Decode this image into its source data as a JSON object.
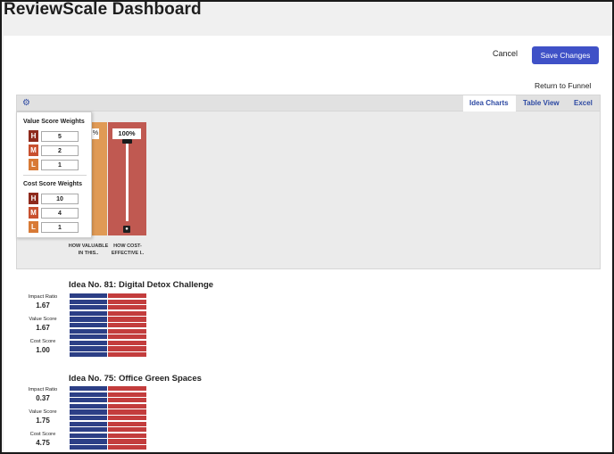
{
  "app": {
    "title": "ReviewScale Dashboard"
  },
  "actions": {
    "cancel_label": "Cancel",
    "save_label": "Save Changes",
    "return_label": "Return to Funnel"
  },
  "tabs": [
    {
      "label": "Idea Charts",
      "active": true
    },
    {
      "label": "Table View",
      "active": false
    },
    {
      "label": "Excel",
      "active": false
    }
  ],
  "sliders": {
    "value_pct": "%",
    "cost_pct": "100%",
    "value_label_1": "HOW VALUABLE",
    "value_label_2": "IN THIS..",
    "cost_label_1": "HOW COST-",
    "cost_label_2": "EFFECTIVE I.."
  },
  "weights": {
    "value_heading": "Value Score Weights",
    "value": [
      {
        "level": "H",
        "amount": "5"
      },
      {
        "level": "M",
        "amount": "2"
      },
      {
        "level": "L",
        "amount": "1"
      }
    ],
    "cost_heading": "Cost Score Weights",
    "cost": [
      {
        "level": "H",
        "amount": "10"
      },
      {
        "level": "M",
        "amount": "4"
      },
      {
        "level": "L",
        "amount": "1"
      }
    ]
  },
  "ideas": [
    {
      "title": "Idea No. 81: Digital Detox Challenge",
      "impact_label": "Impact Ratio",
      "impact": "1.67",
      "value_label": "Value Score",
      "value": "1.67",
      "cost_label": "Cost Score",
      "cost": "1.00"
    },
    {
      "title": "Idea No. 75: Office Green Spaces",
      "impact_label": "Impact Ratio",
      "impact": "0.37",
      "value_label": "Value Score",
      "value": "1.75",
      "cost_label": "Cost Score",
      "cost": "4.75"
    }
  ],
  "colors": {
    "accent": "#3f51c7",
    "tab_text": "#2e4aa3",
    "bar_blue": "#2c3f86",
    "bar_red": "#c33d3d",
    "col_orange": "#e09a55",
    "col_red": "#c05951"
  }
}
